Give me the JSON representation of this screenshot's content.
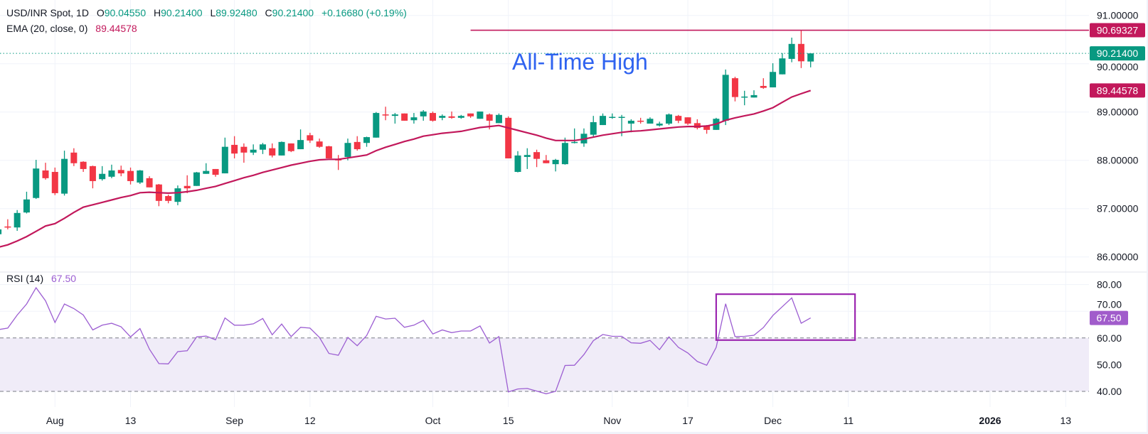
{
  "header": {
    "symbol": "USD/INR Spot, 1D",
    "o_label": "O",
    "o_value": "90.04550",
    "h_label": "H",
    "h_value": "90.21400",
    "l_label": "L",
    "l_value": "89.92480",
    "c_label": "C",
    "c_value": "90.21400",
    "change": "+0.16680 (+0.19%)",
    "ema_label": "EMA (20, close, 0)",
    "ema_value": "89.44578",
    "rsi_label": "RSI (14)",
    "rsi_value": "67.50"
  },
  "colors": {
    "up": "#089981",
    "down": "#f23645",
    "ema": "#c2185b",
    "rsi": "#9c5ed2",
    "rsi_badge": "#a15ccb",
    "rsi_box": "#9c27b0",
    "ath_line": "#c2185b",
    "annotation": "#2f63f0",
    "band": "#f0ecf8"
  },
  "chart_data": [
    {
      "type": "candlestick",
      "title": "USD/INR Spot, 1D",
      "ylim": [
        85.75,
        91.3
      ],
      "y_ticks": [
        "91.00000",
        "90.00000",
        "89.00000",
        "88.00000",
        "87.00000",
        "86.00000"
      ],
      "y_tick_values": [
        91,
        90,
        89,
        88,
        87,
        86
      ],
      "x_ticks": [
        {
          "label": "Aug",
          "candle": 6
        },
        {
          "label": "13",
          "candle": 14
        },
        {
          "label": "Sep",
          "candle": 25
        },
        {
          "label": "12",
          "candle": 33
        },
        {
          "label": "Oct",
          "candle": 46
        },
        {
          "label": "15",
          "candle": 54
        },
        {
          "label": "Nov",
          "candle": 65
        },
        {
          "label": "17",
          "candle": 73
        },
        {
          "label": "Dec",
          "candle": 82
        },
        {
          "label": "11",
          "candle": 90
        },
        {
          "label": "2026",
          "candle": 105,
          "bold": true
        },
        {
          "label": "13",
          "candle": 113
        }
      ],
      "ohlc_fields": [
        "open",
        "high",
        "low",
        "close"
      ],
      "candles": [
        [
          86.47,
          86.6,
          86.45,
          86.57
        ],
        [
          86.63,
          86.78,
          86.57,
          86.62
        ],
        [
          86.61,
          86.97,
          86.54,
          86.91
        ],
        [
          86.92,
          87.35,
          86.9,
          87.19
        ],
        [
          87.22,
          88.01,
          87.2,
          87.83
        ],
        [
          87.79,
          87.95,
          87.6,
          87.63
        ],
        [
          87.76,
          87.85,
          87.28,
          87.32
        ],
        [
          87.31,
          88.2,
          87.27,
          88.03
        ],
        [
          88.16,
          88.25,
          87.88,
          87.94
        ],
        [
          87.97,
          87.98,
          87.76,
          87.82
        ],
        [
          87.88,
          87.89,
          87.42,
          87.57
        ],
        [
          87.61,
          87.88,
          87.58,
          87.72
        ],
        [
          87.66,
          87.91,
          87.63,
          87.79
        ],
        [
          87.8,
          87.89,
          87.67,
          87.73
        ],
        [
          87.78,
          87.85,
          87.5,
          87.57
        ],
        [
          87.54,
          87.8,
          87.51,
          87.79
        ],
        [
          87.63,
          87.67,
          87.44,
          87.44
        ],
        [
          87.5,
          87.51,
          87.05,
          87.16
        ],
        [
          87.26,
          87.29,
          87.11,
          87.16
        ],
        [
          87.14,
          87.48,
          87.07,
          87.42
        ],
        [
          87.47,
          87.69,
          87.32,
          87.42
        ],
        [
          87.47,
          87.76,
          87.47,
          87.75
        ],
        [
          87.72,
          87.94,
          87.72,
          87.78
        ],
        [
          87.82,
          87.82,
          87.66,
          87.7
        ],
        [
          87.73,
          88.47,
          87.73,
          88.28
        ],
        [
          88.32,
          88.5,
          88.04,
          88.14
        ],
        [
          88.28,
          88.35,
          87.95,
          88.16
        ],
        [
          88.16,
          88.33,
          88.11,
          88.22
        ],
        [
          88.22,
          88.36,
          88.13,
          88.33
        ],
        [
          88.25,
          88.35,
          88.06,
          88.1
        ],
        [
          88.1,
          88.39,
          88.1,
          88.38
        ],
        [
          88.35,
          88.35,
          88.17,
          88.19
        ],
        [
          88.23,
          88.64,
          88.23,
          88.42
        ],
        [
          88.52,
          88.57,
          88.36,
          88.41
        ],
        [
          88.39,
          88.45,
          88.26,
          88.28
        ],
        [
          88.29,
          88.3,
          88.04,
          88.04
        ],
        [
          88.02,
          88.11,
          87.8,
          88.01
        ],
        [
          88.07,
          88.45,
          88.0,
          88.36
        ],
        [
          88.38,
          88.5,
          88.2,
          88.23
        ],
        [
          88.36,
          88.49,
          88.28,
          88.48
        ],
        [
          88.47,
          89.0,
          88.47,
          88.98
        ],
        [
          88.95,
          89.11,
          88.83,
          88.94
        ],
        [
          88.92,
          88.98,
          88.76,
          88.95
        ],
        [
          88.97,
          88.97,
          88.82,
          88.82
        ],
        [
          88.83,
          88.98,
          88.76,
          88.89
        ],
        [
          88.91,
          89.04,
          88.82,
          89.01
        ],
        [
          88.98,
          89.01,
          88.8,
          88.82
        ],
        [
          88.88,
          88.95,
          88.83,
          88.92
        ],
        [
          88.91,
          89.01,
          88.86,
          88.88
        ],
        [
          88.88,
          88.94,
          88.86,
          88.92
        ],
        [
          88.97,
          88.97,
          88.88,
          88.91
        ],
        [
          88.86,
          89.01,
          88.86,
          89.01
        ],
        [
          88.95,
          88.97,
          88.64,
          88.82
        ],
        [
          88.77,
          88.97,
          88.77,
          88.94
        ],
        [
          88.88,
          88.91,
          88.04,
          88.04
        ],
        [
          87.76,
          88.19,
          87.75,
          88.1
        ],
        [
          88.07,
          88.25,
          87.82,
          88.11
        ],
        [
          88.17,
          88.22,
          87.86,
          88.03
        ],
        [
          88.0,
          88.11,
          87.94,
          87.94
        ],
        [
          87.92,
          88.03,
          87.77,
          88.01
        ],
        [
          87.92,
          88.47,
          87.91,
          88.36
        ],
        [
          88.37,
          88.66,
          88.35,
          88.38
        ],
        [
          88.35,
          88.66,
          88.28,
          88.55
        ],
        [
          88.53,
          88.92,
          88.48,
          88.79
        ],
        [
          88.73,
          88.97,
          88.73,
          88.92
        ],
        [
          88.89,
          88.97,
          88.86,
          88.9
        ],
        [
          88.89,
          88.94,
          88.5,
          88.9
        ],
        [
          88.76,
          88.85,
          88.58,
          88.82
        ],
        [
          88.82,
          88.88,
          88.76,
          88.81
        ],
        [
          88.76,
          88.89,
          88.76,
          88.86
        ],
        [
          88.72,
          88.8,
          88.7,
          88.76
        ],
        [
          88.76,
          88.97,
          88.73,
          88.95
        ],
        [
          88.92,
          88.94,
          88.77,
          88.82
        ],
        [
          88.89,
          88.89,
          88.73,
          88.76
        ],
        [
          88.77,
          88.85,
          88.64,
          88.67
        ],
        [
          88.72,
          88.73,
          88.55,
          88.63
        ],
        [
          88.63,
          88.88,
          88.63,
          88.86
        ],
        [
          88.82,
          89.88,
          88.73,
          89.77
        ],
        [
          89.7,
          89.73,
          89.22,
          89.31
        ],
        [
          89.31,
          89.44,
          89.14,
          89.32
        ],
        [
          89.3,
          89.45,
          89.3,
          89.35
        ],
        [
          89.54,
          89.7,
          89.48,
          89.5
        ],
        [
          89.51,
          90.01,
          89.51,
          89.83
        ],
        [
          89.78,
          90.22,
          89.78,
          90.11
        ],
        [
          90.1,
          90.54,
          90.03,
          90.41
        ],
        [
          90.41,
          90.69327,
          89.91,
          90.05
        ],
        [
          90.0455,
          90.214,
          89.9248,
          90.214
        ]
      ],
      "ema20": [
        86.2,
        86.25,
        86.33,
        86.42,
        86.53,
        86.64,
        86.69,
        86.8,
        86.92,
        87.03,
        87.08,
        87.13,
        87.18,
        87.23,
        87.27,
        87.33,
        87.34,
        87.33,
        87.32,
        87.33,
        87.35,
        87.38,
        87.42,
        87.46,
        87.52,
        87.58,
        87.64,
        87.69,
        87.75,
        87.8,
        87.85,
        87.9,
        87.94,
        87.98,
        88.01,
        88.02,
        88.02,
        88.05,
        88.08,
        88.11,
        88.2,
        88.27,
        88.33,
        88.39,
        88.44,
        88.5,
        88.53,
        88.56,
        88.58,
        88.6,
        88.64,
        88.68,
        88.7,
        88.72,
        88.67,
        88.62,
        88.57,
        88.52,
        88.46,
        88.41,
        88.41,
        88.41,
        88.44,
        88.48,
        88.52,
        88.55,
        88.58,
        88.6,
        88.61,
        88.63,
        88.65,
        88.67,
        88.69,
        88.7,
        88.7,
        88.71,
        88.75,
        88.83,
        88.88,
        88.92,
        88.96,
        89.02,
        89.09,
        89.2,
        89.31,
        89.38,
        89.44578
      ],
      "last_price": {
        "value": 90.214,
        "label": "90.21400"
      },
      "ema_badge": {
        "value": 89.44578,
        "label": "89.44578"
      },
      "ath_line": {
        "value": 90.69327,
        "label": "90.69327",
        "from_candle": 50
      },
      "annotation": "All-Time High"
    },
    {
      "type": "line",
      "title": "RSI (14)",
      "ylim": [
        35,
        82
      ],
      "y_ticks": [
        "80.00",
        "70.00",
        "60.00",
        "50.00",
        "40.00"
      ],
      "y_tick_values": [
        80,
        70,
        60,
        50,
        40
      ],
      "band": [
        40,
        60
      ],
      "values": [
        63.1,
        63.7,
        68.6,
        72.7,
        78.8,
        73.9,
        65.8,
        72.7,
        71.0,
        68.6,
        63.0,
        64.8,
        65.5,
        64.2,
        60.4,
        63.5,
        55.8,
        50.4,
        50.3,
        54.9,
        55.2,
        60.4,
        60.7,
        59.3,
        67.5,
        64.8,
        64.8,
        65.3,
        67.3,
        61.2,
        65.2,
        60.5,
        64.0,
        63.7,
        60.2,
        54.2,
        53.5,
        60.2,
        57.1,
        60.9,
        68.1,
        67.1,
        67.4,
        64.0,
        64.8,
        66.6,
        61.5,
        63.0,
        62.0,
        62.6,
        62.6,
        64.5,
        58.1,
        60.5,
        39.8,
        40.9,
        41.1,
        40.1,
        39.1,
        40.0,
        49.7,
        49.8,
        53.8,
        59.0,
        61.3,
        60.6,
        60.6,
        58.2,
        58.0,
        59.1,
        55.6,
        60.4,
        56.5,
        54.4,
        51.2,
        49.8,
        56.5,
        72.8,
        60.5,
        60.6,
        61.0,
        63.9,
        68.4,
        71.7,
        75.0,
        65.5,
        67.5
      ],
      "last": {
        "value": 67.5,
        "label": "67.50"
      },
      "box": {
        "from_candle": 76,
        "to_candle": 90.7,
        "low": 59.2,
        "high": 76.4
      }
    }
  ]
}
